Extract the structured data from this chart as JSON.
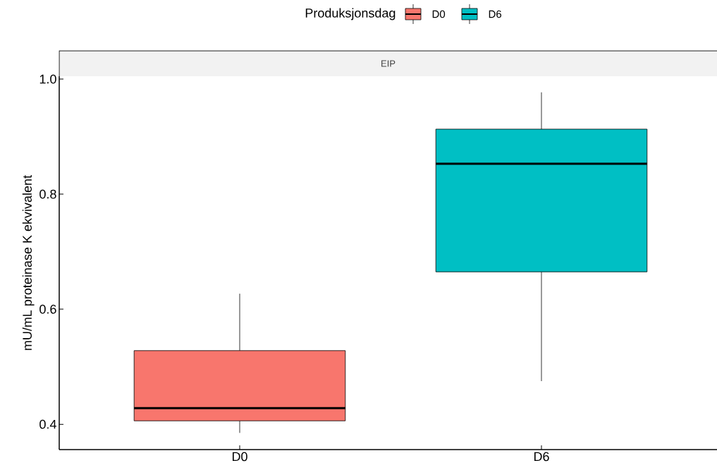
{
  "chart_data": {
    "type": "box",
    "title": "EIP",
    "ylabel": "mU/mL proteinase K ekvivalent",
    "legend_title": "Produksjonsdag",
    "legend": "top",
    "categories": [
      "D0",
      "D6"
    ],
    "series": [
      {
        "name": "D0",
        "color": "#f8766d",
        "boxes": [
          {
            "low": 0.385,
            "q1": 0.406,
            "median": 0.428,
            "q3": 0.528,
            "high": 0.627
          },
          null
        ]
      },
      {
        "name": "D6",
        "color": "#00bfc4",
        "boxes": [
          null,
          {
            "low": 0.475,
            "q1": 0.665,
            "median": 0.853,
            "q3": 0.913,
            "high": 0.977
          }
        ]
      }
    ],
    "ylim": [
      0.356,
      1.005
    ],
    "yticks": [
      0.4,
      0.6,
      0.8,
      {
        "value": 1.0,
        "label": "1.0"
      }
    ],
    "grid": false
  }
}
